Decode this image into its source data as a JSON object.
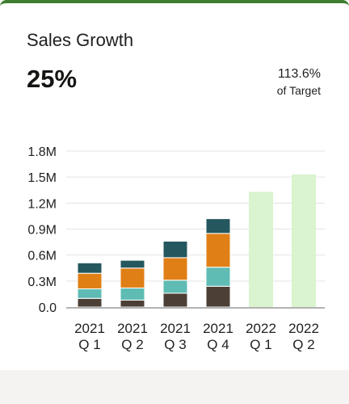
{
  "card": {
    "title": "Sales Growth",
    "kpi_value": "25%",
    "target_value": "113.6%",
    "target_label": "of Target"
  },
  "colors": {
    "accent_bar": "#3d7e2f",
    "segment_1": "#4b3f36",
    "segment_2": "#5fbcb4",
    "segment_3": "#e07f16",
    "segment_4": "#24575e",
    "forecast": "#d9f4cf",
    "gridline": "#e3e3e3",
    "axis": "#999999"
  },
  "chart_data": {
    "type": "bar",
    "stacked": true,
    "categories": [
      [
        "2021",
        "Q 1"
      ],
      [
        "2021",
        "Q 2"
      ],
      [
        "2021",
        "Q 3"
      ],
      [
        "2021",
        "Q 4"
      ],
      [
        "2022",
        "Q 1"
      ],
      [
        "2022",
        "Q 2"
      ]
    ],
    "series": [
      {
        "color": "#4b3f36",
        "values": [
          0.1,
          0.08,
          0.16,
          0.24,
          null,
          null
        ]
      },
      {
        "color": "#5fbcb4",
        "values": [
          0.11,
          0.14,
          0.15,
          0.22,
          null,
          null
        ]
      },
      {
        "color": "#e07f16",
        "values": [
          0.18,
          0.23,
          0.26,
          0.39,
          null,
          null
        ]
      },
      {
        "color": "#24575e",
        "values": [
          0.12,
          0.09,
          0.19,
          0.17,
          null,
          null
        ]
      },
      {
        "color": "#d9f4cf",
        "values": [
          null,
          null,
          null,
          null,
          1.33,
          1.53
        ]
      }
    ],
    "yticks": [
      "0.0",
      "0.3M",
      "0.6M",
      "0.9M",
      "1.2M",
      "1.5M",
      "1.8M"
    ],
    "ylim": [
      0,
      1.8
    ],
    "grid": true,
    "legend": "none",
    "title": "",
    "xlabel": "",
    "ylabel": ""
  }
}
